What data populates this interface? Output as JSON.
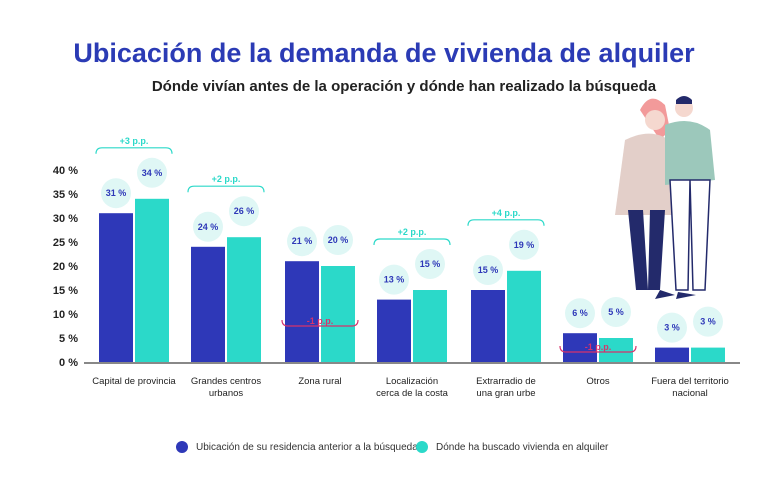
{
  "chart_data": {
    "type": "bar",
    "title": "Ubicación de la demanda de vivienda de alquiler",
    "subtitle": "Dónde vivían antes de la operación y dónde han realizado la búsqueda",
    "categories": [
      [
        "Capital de provincia"
      ],
      [
        "Grandes centros",
        "urbanos"
      ],
      [
        "Zona rural"
      ],
      [
        "Localización",
        "cerca de la costa"
      ],
      [
        "Extrarradio de",
        "una gran urbe"
      ],
      [
        "Otros"
      ],
      [
        "Fuera del territorio",
        "nacional"
      ]
    ],
    "series": [
      {
        "name": "Ubicación de su residencia anterior a la búsqueda",
        "color": "#2e38b8",
        "values": [
          31,
          24,
          21,
          13,
          15,
          6,
          3
        ]
      },
      {
        "name": "Dónde ha buscado vivienda en alquiler",
        "color": "#2bd9c9",
        "values": [
          34,
          26,
          20,
          15,
          19,
          5,
          3
        ]
      }
    ],
    "data_labels": [
      [
        "31 %",
        "24 %",
        "21 %",
        "13 %",
        "15 %",
        "6 %",
        "3 %"
      ],
      [
        "34 %",
        "26 %",
        "20 %",
        "15 %",
        "19 %",
        "5 %",
        "3 %"
      ]
    ],
    "differences": [
      "+3 p.p.",
      "+2 p.p.",
      "-1 p.p.",
      "+2 p.p.",
      "+4 p.p.",
      "-1 p.p.",
      ""
    ],
    "yticks": [
      "0 %",
      "5 %",
      "10 %",
      "15 %",
      "20 %",
      "25 %",
      "30 %",
      "35 %",
      "40 %"
    ],
    "ylim": [
      0,
      40
    ],
    "grid": false,
    "legend": "bottom",
    "colors": {
      "positive": "#2bd9c9",
      "negative": "#d6336c",
      "label_bubble": "#dff7f5",
      "label_text": "#2e38b8"
    }
  }
}
